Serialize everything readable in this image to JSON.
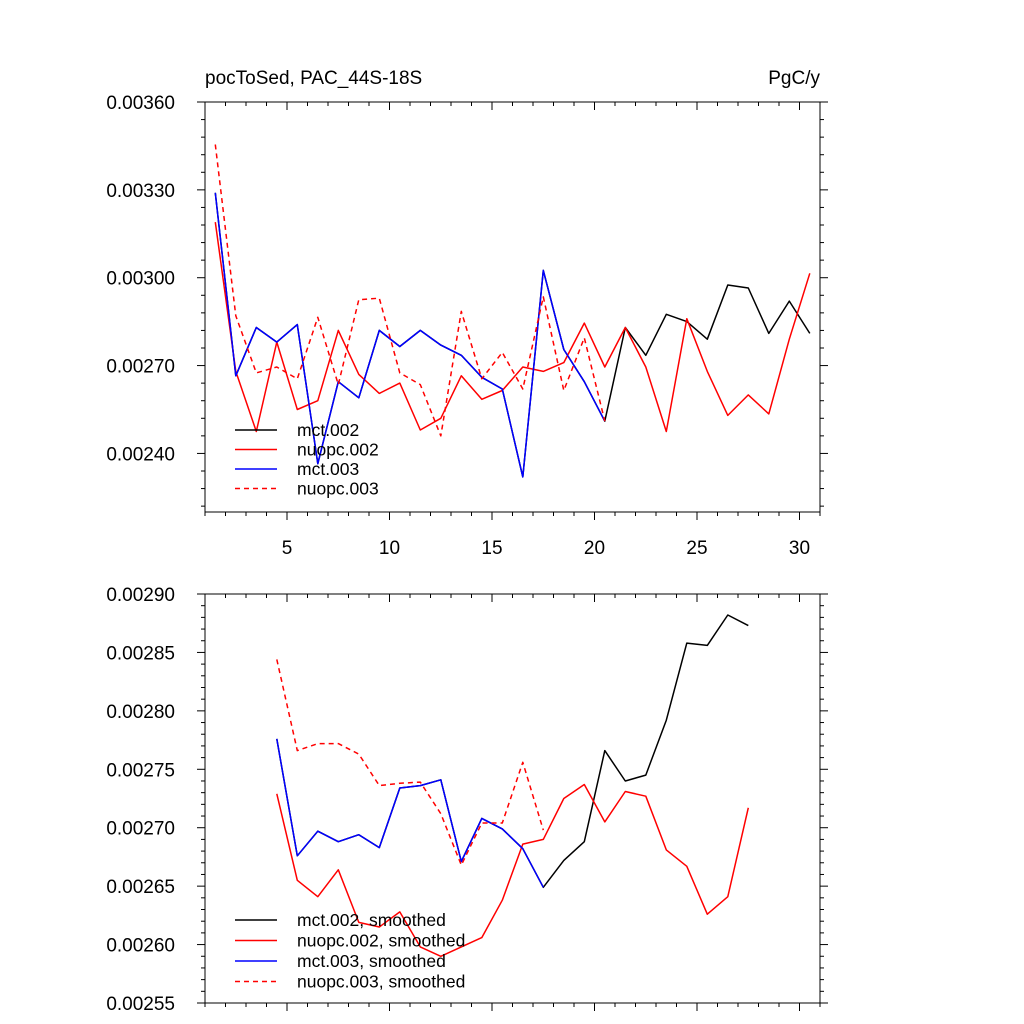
{
  "chart_data": [
    {
      "type": "line",
      "title_left": "pocToSed, PAC_44S-18S",
      "title_right": "PgC/y",
      "xlabel": "",
      "ylabel": "",
      "xlim": [
        1,
        31
      ],
      "ylim": [
        0.0022,
        0.0036
      ],
      "xticks": [
        5,
        10,
        15,
        20,
        25,
        30
      ],
      "xtick_labels": [
        "5",
        "10",
        "15",
        "20",
        "25",
        "30"
      ],
      "yticks": [
        0.0024,
        0.0027,
        0.003,
        0.0033,
        0.0036
      ],
      "ytick_labels": [
        "0.00240",
        "0.00270",
        "0.00300",
        "0.00330",
        "0.00360"
      ],
      "grid": false,
      "legend_position": "bottom-left",
      "series": [
        {
          "name": "mct.002",
          "color": "#000000",
          "dash": "solid",
          "x": [
            1.5,
            2.5,
            3.5,
            4.5,
            5.5,
            6.5,
            7.5,
            8.5,
            9.5,
            10.5,
            11.5,
            12.5,
            13.5,
            14.5,
            15.5,
            16.5,
            17.5,
            18.5,
            19.5,
            20.5,
            21.5,
            22.5,
            23.5,
            24.5,
            25.5,
            26.5,
            27.5,
            28.5,
            29.5,
            30.5
          ],
          "y": [
            0.00329,
            0.002665,
            0.00283,
            0.00278,
            0.00284,
            0.002365,
            0.002645,
            0.00259,
            0.00282,
            0.002765,
            0.00282,
            0.00277,
            0.002735,
            0.00266,
            0.00262,
            0.00232,
            0.003025,
            0.002755,
            0.002645,
            0.00251,
            0.00283,
            0.002735,
            0.002875,
            0.00285,
            0.00279,
            0.002975,
            0.002965,
            0.00281,
            0.00292,
            0.00281
          ]
        },
        {
          "name": "nuopc.002",
          "color": "#ff0000",
          "dash": "solid",
          "x": [
            1.5,
            2.5,
            3.5,
            4.5,
            5.5,
            6.5,
            7.5,
            8.5,
            9.5,
            10.5,
            11.5,
            12.5,
            13.5,
            14.5,
            15.5,
            16.5,
            17.5,
            18.5,
            19.5,
            20.5,
            21.5,
            22.5,
            23.5,
            24.5,
            25.5,
            26.5,
            27.5,
            28.5,
            29.5,
            30.5
          ],
          "y": [
            0.00319,
            0.00268,
            0.002475,
            0.00278,
            0.00255,
            0.00258,
            0.00282,
            0.00267,
            0.002605,
            0.00264,
            0.00248,
            0.00252,
            0.002665,
            0.002585,
            0.002615,
            0.002695,
            0.00268,
            0.00271,
            0.002845,
            0.002695,
            0.00283,
            0.002695,
            0.002475,
            0.00286,
            0.00268,
            0.00253,
            0.0026,
            0.002535,
            0.00279,
            0.003015
          ]
        },
        {
          "name": "mct.003",
          "color": "#0000ff",
          "dash": "solid",
          "x": [
            1.5,
            2.5,
            3.5,
            4.5,
            5.5,
            6.5,
            7.5,
            8.5,
            9.5,
            10.5,
            11.5,
            12.5,
            13.5,
            14.5,
            15.5,
            16.5,
            17.5,
            18.5,
            19.5,
            20.5
          ],
          "y": [
            0.00329,
            0.002665,
            0.00283,
            0.00278,
            0.00284,
            0.002365,
            0.002645,
            0.00259,
            0.00282,
            0.002765,
            0.00282,
            0.00277,
            0.002735,
            0.00266,
            0.00262,
            0.00232,
            0.003025,
            0.002755,
            0.002645,
            0.00251
          ]
        },
        {
          "name": "nuopc.003",
          "color": "#ff0000",
          "dash": "dashed",
          "x": [
            1.5,
            2.5,
            3.5,
            4.5,
            5.5,
            6.5,
            7.5,
            8.5,
            9.5,
            10.5,
            11.5,
            12.5,
            13.5,
            14.5,
            15.5,
            16.5,
            17.5,
            18.5,
            19.5,
            20.5
          ],
          "y": [
            0.003455,
            0.00287,
            0.002675,
            0.002695,
            0.002655,
            0.002865,
            0.002635,
            0.002925,
            0.00293,
            0.002675,
            0.002635,
            0.00246,
            0.002885,
            0.002655,
            0.002745,
            0.00262,
            0.002935,
            0.002615,
            0.002795,
            0.00251
          ]
        }
      ]
    },
    {
      "type": "line",
      "title_left": "",
      "title_right": "",
      "xlabel": "",
      "ylabel": "",
      "xlim": [
        1,
        31
      ],
      "ylim": [
        0.00255,
        0.0029
      ],
      "xticks": [
        5,
        10,
        15,
        20,
        25,
        30
      ],
      "xtick_labels": [],
      "yticks": [
        0.00255,
        0.0026,
        0.00265,
        0.0027,
        0.00275,
        0.0028,
        0.00285,
        0.0029
      ],
      "ytick_labels": [
        "0.00255",
        "0.00260",
        "0.00265",
        "0.00270",
        "0.00275",
        "0.00280",
        "0.00285",
        "0.00290"
      ],
      "grid": false,
      "legend_position": "bottom-left",
      "series": [
        {
          "name": "mct.002, smoothed",
          "color": "#000000",
          "dash": "solid",
          "x": [
            4.5,
            5.5,
            6.5,
            7.5,
            8.5,
            9.5,
            10.5,
            11.5,
            12.5,
            13.5,
            14.5,
            15.5,
            16.5,
            17.5,
            18.5,
            19.5,
            20.5,
            21.5,
            22.5,
            23.5,
            24.5,
            25.5,
            26.5,
            27.5
          ],
          "y": [
            0.002776,
            0.002676,
            0.002697,
            0.002688,
            0.002694,
            0.002683,
            0.002734,
            0.002736,
            0.002741,
            0.002671,
            0.002708,
            0.002699,
            0.002682,
            0.002649,
            0.002672,
            0.002688,
            0.002766,
            0.00274,
            0.002745,
            0.002792,
            0.002858,
            0.002856,
            0.002882,
            0.002873
          ]
        },
        {
          "name": "nuopc.002, smoothed",
          "color": "#ff0000",
          "dash": "solid",
          "x": [
            4.5,
            5.5,
            6.5,
            7.5,
            8.5,
            9.5,
            10.5,
            11.5,
            12.5,
            13.5,
            14.5,
            15.5,
            16.5,
            17.5,
            18.5,
            19.5,
            20.5,
            21.5,
            22.5,
            23.5,
            24.5,
            25.5,
            26.5,
            27.5
          ],
          "y": [
            0.002729,
            0.002655,
            0.002641,
            0.002664,
            0.002619,
            0.002615,
            0.002628,
            0.002598,
            0.00259,
            0.002598,
            0.002606,
            0.002638,
            0.002686,
            0.00269,
            0.002725,
            0.002737,
            0.002705,
            0.002731,
            0.002727,
            0.002681,
            0.002667,
            0.002626,
            0.002641,
            0.002717
          ]
        },
        {
          "name": "mct.003, smoothed",
          "color": "#0000ff",
          "dash": "solid",
          "x": [
            4.5,
            5.5,
            6.5,
            7.5,
            8.5,
            9.5,
            10.5,
            11.5,
            12.5,
            13.5,
            14.5,
            15.5,
            16.5,
            17.5
          ],
          "y": [
            0.002776,
            0.002676,
            0.002697,
            0.002688,
            0.002694,
            0.002683,
            0.002734,
            0.002736,
            0.002741,
            0.002671,
            0.002708,
            0.002699,
            0.002682,
            0.002649
          ]
        },
        {
          "name": "nuopc.003, smoothed",
          "color": "#ff0000",
          "dash": "dashed",
          "x": [
            4.5,
            5.5,
            6.5,
            7.5,
            8.5,
            9.5,
            10.5,
            11.5,
            12.5,
            13.5,
            14.5,
            15.5,
            16.5,
            17.5
          ],
          "y": [
            0.002844,
            0.002766,
            0.002772,
            0.002772,
            0.002763,
            0.002736,
            0.002738,
            0.002739,
            0.002712,
            0.002668,
            0.002704,
            0.002704,
            0.002756,
            0.002698
          ]
        }
      ]
    }
  ]
}
